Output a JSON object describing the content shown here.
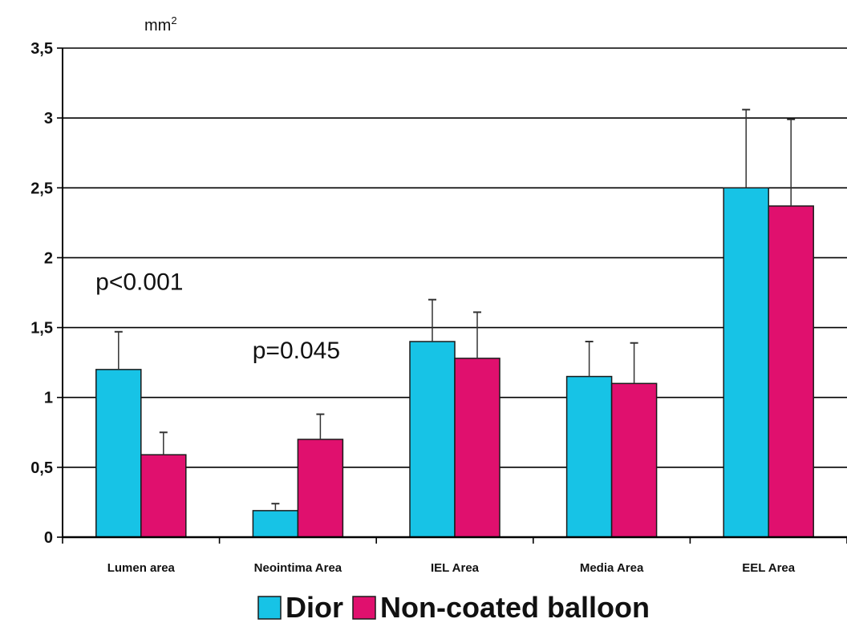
{
  "chart_data": {
    "type": "bar",
    "unit_label": "mm",
    "unit_superscript": "2",
    "categories": [
      "Lumen area",
      "Neointima Area",
      "IEL Area",
      "Media Area",
      "EEL Area"
    ],
    "series": [
      {
        "name": "Dior",
        "color": "#17c3e6",
        "values": [
          1.2,
          0.19,
          1.4,
          1.15,
          2.5
        ],
        "errors": [
          0.27,
          0.05,
          0.3,
          0.25,
          0.56
        ]
      },
      {
        "name": "Non-coated balloon",
        "color": "#e0106e",
        "values": [
          0.59,
          0.7,
          1.28,
          1.1,
          2.37
        ],
        "errors": [
          0.16,
          0.18,
          0.33,
          0.29,
          0.62
        ]
      }
    ],
    "ylim": [
      0,
      3.5
    ],
    "yticks": [
      "0",
      "0,5",
      "1",
      "1,5",
      "2",
      "2,5",
      "3",
      "3,5"
    ],
    "ytick_values": [
      0,
      0.5,
      1,
      1.5,
      2,
      2.5,
      3,
      3.5
    ],
    "grid": true,
    "legend_position": "bottom",
    "annotations": [
      {
        "text": "p<0.001",
        "category": "Lumen area",
        "y": 1.77
      },
      {
        "text": "p=0.045",
        "category": "Neointima Area",
        "y": 1.28
      }
    ]
  }
}
